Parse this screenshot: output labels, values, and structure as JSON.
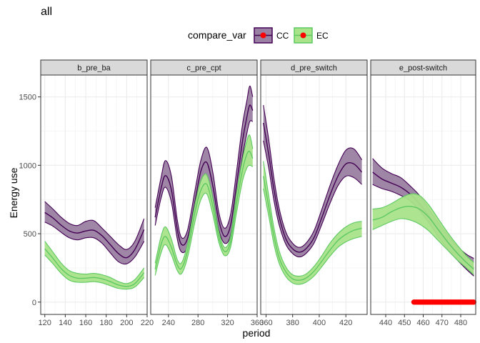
{
  "title": "all",
  "legend": {
    "title": "compare_var",
    "items": [
      {
        "label": "CC",
        "fill": "#9a80a2",
        "line": "#440154"
      },
      {
        "label": "EC",
        "fill": "#a9e38a",
        "line": "#5ec962"
      }
    ],
    "point_color": "#ff0000"
  },
  "chart_data": {
    "type": "line",
    "title": "all",
    "xlabel": "period",
    "ylabel": "Energy use",
    "ylim": [
      -90,
      1660
    ],
    "y_ticks": [
      0,
      500,
      1000,
      1500
    ],
    "grid": true,
    "legend_position": "top",
    "facets": [
      {
        "label": "b_pre_ba",
        "xlim": [
          116,
          220
        ],
        "x_ticks": [
          120,
          140,
          160,
          180,
          200,
          220
        ],
        "series": [
          {
            "name": "CC",
            "x": [
              120,
              128,
              136,
              144,
              152,
              160,
              168,
              176,
              184,
              192,
              200,
              208,
              217
            ],
            "fit": [
              655,
              615,
              562,
              520,
              505,
              520,
              525,
              485,
              420,
              355,
              325,
              385,
              530
            ],
            "lower": [
              585,
              555,
              510,
              470,
              455,
              470,
              470,
              430,
              360,
              295,
              280,
              330,
              445
            ],
            "upper": [
              735,
              680,
              620,
              575,
              560,
              590,
              595,
              540,
              480,
              420,
              385,
              445,
              610
            ]
          },
          {
            "name": "EC",
            "x": [
              120,
              128,
              136,
              144,
              152,
              160,
              168,
              176,
              184,
              192,
              200,
              208,
              217
            ],
            "fit": [
              390,
              320,
              245,
              195,
              175,
              175,
              180,
              170,
              150,
              125,
              115,
              135,
              215
            ],
            "lower": [
              345,
              280,
              210,
              160,
              145,
              145,
              150,
              140,
              120,
              100,
              95,
              110,
              180
            ],
            "upper": [
              445,
              365,
              285,
              230,
              210,
              205,
              210,
              200,
              180,
              150,
              135,
              165,
              250
            ]
          }
        ],
        "points": []
      },
      {
        "label": "c_pre_cpt",
        "xlim": [
          216,
          360
        ],
        "x_ticks": [
          240,
          280,
          320,
          360
        ],
        "series": [
          {
            "name": "CC",
            "x": [
              222,
              230,
              236,
              244,
              252,
              258,
              266,
              276,
              284,
              292,
              300,
              308,
              316,
              324,
              332,
              340,
              346,
              350,
              354
            ],
            "fit": [
              620,
              830,
              925,
              820,
              530,
              420,
              470,
              740,
              960,
              1020,
              850,
              600,
              480,
              560,
              850,
              1170,
              1350,
              1440,
              1400
            ],
            "lower": [
              560,
              760,
              840,
              730,
              460,
              365,
              410,
              660,
              880,
              920,
              760,
              530,
              430,
              490,
              770,
              1060,
              1230,
              1320,
              1320
            ],
            "upper": [
              690,
              910,
              1035,
              920,
              600,
              470,
              530,
              820,
              1040,
              1130,
              950,
              660,
              540,
              640,
              950,
              1290,
              1470,
              1580,
              1500
            ]
          },
          {
            "name": "EC",
            "x": [
              222,
              230,
              236,
              244,
              252,
              258,
              266,
              276,
              284,
              292,
              300,
              308,
              316,
              324,
              332,
              340,
              346,
              350,
              354
            ],
            "fit": [
              240,
              420,
              480,
              400,
              270,
              250,
              380,
              660,
              820,
              860,
              700,
              480,
              370,
              440,
              720,
              960,
              1080,
              1100,
              1050
            ],
            "lower": [
              195,
              360,
              420,
              345,
              230,
              210,
              330,
              590,
              750,
              790,
              640,
              440,
              340,
              400,
              650,
              880,
              980,
              1000,
              990
            ],
            "upper": [
              285,
              480,
              550,
              460,
              310,
              290,
              430,
              720,
              890,
              930,
              760,
              520,
              400,
              480,
              790,
              1040,
              1180,
              1220,
              1120
            ]
          }
        ],
        "points": []
      },
      {
        "label": "d_pre_switch",
        "xlim": [
          356,
          436
        ],
        "x_ticks": [
          360,
          380,
          400,
          420
        ],
        "series": [
          {
            "name": "CC",
            "x": [
              358,
              362,
              366,
              370,
              375,
              380,
              385,
              390,
              396,
              402,
              408,
              414,
              420,
              426,
              432
            ],
            "fit": [
              1310,
              1080,
              820,
              620,
              460,
              390,
              365,
              390,
              470,
              620,
              780,
              920,
              1010,
              1010,
              950
            ],
            "lower": [
              1180,
              980,
              740,
              560,
              420,
              355,
              330,
              355,
              430,
              570,
              720,
              850,
              920,
              910,
              860
            ],
            "upper": [
              1440,
              1190,
              900,
              680,
              510,
              430,
              400,
              430,
              520,
              680,
              850,
              1000,
              1110,
              1120,
              1040
            ]
          },
          {
            "name": "EC",
            "x": [
              358,
              362,
              366,
              370,
              375,
              380,
              385,
              390,
              396,
              402,
              408,
              414,
              420,
              426,
              432
            ],
            "fit": [
              920,
              700,
              480,
              320,
              220,
              170,
              160,
              175,
              225,
              300,
              380,
              450,
              495,
              525,
              540
            ],
            "lower": [
              830,
              630,
              420,
              280,
              185,
              140,
              130,
              145,
              190,
              260,
              335,
              400,
              440,
              465,
              480
            ],
            "upper": [
              1030,
              780,
              540,
              370,
              255,
              200,
              190,
              205,
              260,
              340,
              430,
              500,
              550,
              580,
              590
            ]
          }
        ],
        "points": []
      },
      {
        "label": "e_post-switch",
        "xlim": [
          432,
          488
        ],
        "x_ticks": [
          440,
          450,
          460,
          470,
          480
        ],
        "series": [
          {
            "name": "CC",
            "x": [
              433,
              438,
              443,
              448,
              453,
              458,
              463,
              468,
              473,
              478,
              483,
              487
            ],
            "fit": [
              950,
              900,
              870,
              840,
              790,
              720,
              630,
              530,
              440,
              360,
              290,
              250
            ],
            "lower": [
              860,
              830,
              810,
              780,
              740,
              670,
              580,
              480,
              390,
              310,
              240,
              190
            ],
            "upper": [
              1050,
              980,
              940,
              910,
              850,
              780,
              680,
              580,
              490,
              410,
              350,
              320
            ]
          },
          {
            "name": "EC",
            "x": [
              433,
              438,
              443,
              448,
              453,
              458,
              463,
              468,
              473,
              478,
              483,
              487
            ],
            "fit": [
              600,
              620,
              660,
              690,
              700,
              680,
              620,
              530,
              440,
              360,
              290,
              240
            ],
            "lower": [
              530,
              560,
              590,
              610,
              600,
              570,
              520,
              450,
              380,
              310,
              250,
              200
            ],
            "upper": [
              680,
              690,
              720,
              760,
              790,
              780,
              710,
              610,
              510,
              420,
              340,
              290
            ]
          }
        ],
        "points": {
          "x_from": 455,
          "x_to": 487,
          "y": 0
        }
      }
    ]
  }
}
